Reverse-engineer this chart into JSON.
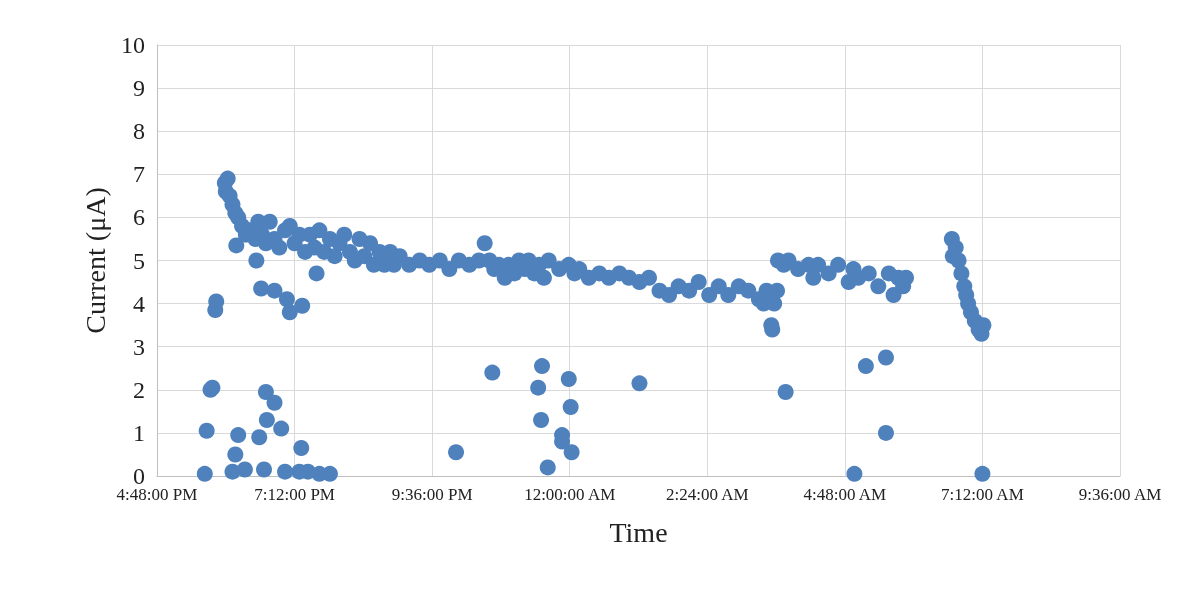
{
  "chart_data": {
    "type": "scatter",
    "xlabel": "Time",
    "ylabel": "Current (μA)",
    "xlim": [
      "--01-01T16:48",
      "--01-02T09:36"
    ],
    "xticks": [
      {
        "value": "--01-01T16:48",
        "label": "4:48:00 PM"
      },
      {
        "value": "--01-01T19:12",
        "label": "7:12:00 PM"
      },
      {
        "value": "--01-01T21:36",
        "label": "9:36:00 PM"
      },
      {
        "value": "--01-02T00:00",
        "label": "12:00:00 AM"
      },
      {
        "value": "--01-02T02:24",
        "label": "2:24:00 AM"
      },
      {
        "value": "--01-02T04:48",
        "label": "4:48:00 AM"
      },
      {
        "value": "--01-02T07:12",
        "label": "7:12:00 AM"
      },
      {
        "value": "--01-02T09:36",
        "label": "9:36:00 AM"
      }
    ],
    "ylim": [
      0,
      10
    ],
    "yticks": [
      0,
      1,
      2,
      3,
      4,
      5,
      6,
      7,
      8,
      9,
      10
    ],
    "grid": true,
    "marker": "circle",
    "series": [
      {
        "color": "#4f81bd",
        "x": [
          "--01-01T17:59",
          "--01-01T18:00",
          "--01-01T18:02",
          "--01-01T18:04",
          "--01-01T18:07",
          "--01-01T18:10",
          "--01-01T18:13",
          "--01-01T18:17",
          "--01-01T18:21",
          "--01-01T18:25",
          "--01-01T18:31",
          "--01-01T18:34",
          "--01-01T18:38",
          "--01-01T18:42",
          "--01-01T18:46",
          "--01-01T18:51",
          "--01-01T18:56",
          "--01-01T19:02",
          "--01-01T19:07",
          "--01-01T19:12",
          "--01-01T19:17",
          "--01-01T19:23",
          "--01-01T19:28",
          "--01-01T19:33",
          "--01-01T19:38",
          "--01-01T19:43",
          "--01-01T19:49",
          "--01-01T19:54",
          "--01-01T19:59",
          "--01-01T20:04",
          "--01-01T20:10",
          "--01-01T20:15",
          "--01-01T20:20",
          "--01-01T20:25",
          "--01-01T20:31",
          "--01-01T20:35",
          "--01-01T20:41",
          "--01-01T20:46",
          "--01-01T20:52",
          "--01-01T20:56",
          "--01-01T21:02",
          "--01-01T21:12",
          "--01-01T21:23",
          "--01-01T21:33",
          "--01-01T21:44",
          "--01-01T21:54",
          "--01-01T22:04",
          "--01-01T22:15",
          "--01-01T22:25",
          "--01-01T22:31",
          "--01-01T22:36",
          "--01-01T22:41",
          "--01-01T22:46",
          "--01-01T22:52",
          "--01-01T22:56",
          "--01-01T23:02",
          "--01-01T23:07",
          "--01-01T23:13",
          "--01-01T23:17",
          "--01-01T23:23",
          "--01-01T23:28",
          "--01-01T23:33",
          "--01-01T23:38",
          "--01-01T23:49",
          "--01-01T23:59",
          "--01-02T00:05",
          "--01-02T00:10",
          "--01-02T00:20",
          "--01-02T00:31",
          "--01-02T00:41",
          "--01-02T00:52",
          "--01-02T01:02",
          "--01-02T01:13",
          "--01-02T01:23",
          "--01-02T01:34",
          "--01-02T01:44",
          "--01-02T01:54",
          "--01-02T02:05",
          "--01-02T02:15",
          "--01-02T02:26",
          "--01-02T02:36",
          "--01-02T02:46",
          "--01-02T02:57",
          "--01-02T03:07",
          "--01-02T03:18",
          "--01-02T03:23",
          "--01-02T03:26",
          "--01-02T03:31",
          "--01-02T03:32",
          "--01-02T03:34",
          "--01-02T03:37",
          "--01-02T03:38",
          "--01-02T03:44",
          "--01-02T03:49",
          "--01-02T03:59",
          "--01-02T04:10",
          "--01-02T04:15",
          "--01-02T04:20",
          "--01-02T04:31",
          "--01-02T04:41",
          "--01-02T04:52",
          "--01-02T04:57",
          "--01-02T05:02",
          "--01-02T05:13",
          "--01-02T05:23",
          "--01-02T05:34",
          "--01-02T05:39",
          "--01-02T05:44",
          "--01-02T05:49",
          "--01-02T05:52",
          "--01-02T06:40",
          "--01-02T06:41",
          "--01-02T06:44",
          "--01-02T06:47",
          "--01-02T06:50",
          "--01-02T06:53",
          "--01-02T06:55",
          "--01-02T06:57",
          "--01-02T07:00",
          "--01-02T07:04",
          "--01-02T07:08",
          "--01-02T07:11",
          "--01-02T07:13",
          "--01-01T17:38",
          "--01-01T17:40",
          "--01-01T17:44",
          "--01-01T17:46",
          "--01-01T17:49",
          "--01-01T17:50",
          "--01-01T18:07",
          "--01-01T18:10",
          "--01-01T18:13",
          "--01-01T18:11",
          "--01-01T18:20",
          "--01-01T18:32",
          "--01-01T18:35",
          "--01-01T18:37",
          "--01-01T18:40",
          "--01-01T18:42",
          "--01-01T18:43",
          "--01-01T18:51",
          "--01-01T18:51",
          "--01-01T18:58",
          "--01-01T19:02",
          "--01-01T19:04",
          "--01-01T19:07",
          "--01-01T19:19",
          "--01-01T19:20",
          "--01-01T19:17",
          "--01-01T19:26",
          "--01-01T19:35",
          "--01-01T19:38",
          "--01-01T19:49",
          "--01-01T22:01",
          "--01-01T22:39",
          "--01-01T23:27",
          "--01-01T23:31",
          "--01-01T23:30",
          "--01-01T23:37",
          "--01-01T23:52",
          "--01-01T23:52",
          "--01-01T23:59",
          "--01-02T00:01",
          "--01-02T00:02",
          "--01-02T01:13",
          "--01-02T03:46",
          "--01-02T04:58",
          "--01-02T05:10",
          "--01-02T05:31",
          "--01-02T05:31",
          "--01-02T07:12"
        ],
        "values": [
          6.8,
          6.6,
          6.9,
          6.5,
          6.3,
          6.1,
          6.0,
          5.8,
          5.6,
          5.7,
          5.5,
          5.9,
          5.6,
          5.4,
          5.9,
          5.5,
          5.3,
          5.7,
          5.8,
          5.4,
          5.6,
          5.2,
          5.6,
          5.3,
          5.7,
          5.2,
          5.5,
          5.1,
          5.4,
          5.6,
          5.2,
          5.0,
          5.5,
          5.1,
          5.4,
          4.9,
          5.2,
          4.9,
          5.2,
          4.9,
          5.1,
          4.9,
          5.0,
          4.9,
          5.0,
          4.8,
          5.0,
          4.9,
          5.0,
          5.4,
          5.0,
          4.8,
          4.9,
          4.6,
          4.9,
          4.7,
          5.0,
          4.8,
          5.0,
          4.7,
          4.9,
          4.6,
          5.0,
          4.8,
          4.9,
          4.7,
          4.8,
          4.6,
          4.7,
          4.6,
          4.7,
          4.6,
          4.5,
          4.6,
          4.3,
          4.2,
          4.4,
          4.3,
          4.5,
          4.2,
          4.4,
          4.2,
          4.4,
          4.3,
          4.1,
          4.0,
          4.3,
          3.5,
          3.4,
          4.0,
          4.3,
          5.0,
          4.9,
          5.0,
          4.8,
          4.9,
          4.6,
          4.9,
          4.7,
          4.9,
          4.5,
          4.8,
          4.6,
          4.7,
          4.4,
          4.7,
          4.2,
          4.6,
          4.4,
          4.6,
          5.5,
          5.1,
          5.3,
          5.0,
          4.7,
          4.4,
          4.2,
          4.0,
          3.8,
          3.6,
          3.4,
          3.3,
          3.5,
          0.05,
          1.05,
          2.0,
          2.05,
          3.85,
          4.05,
          0.1,
          0.5,
          0.95,
          5.35,
          0.15,
          5.0,
          0.9,
          4.35,
          0.15,
          1.95,
          1.3,
          4.3,
          1.7,
          1.1,
          0.1,
          4.1,
          3.8,
          0.65,
          3.95,
          0.1,
          0.1,
          4.7,
          0.05,
          0.05,
          0.55,
          2.4,
          2.05,
          2.55,
          1.3,
          0.2,
          0.95,
          0.8,
          2.25,
          1.6,
          0.55,
          2.15,
          1.95,
          0.05,
          2.55,
          2.75,
          1.0,
          0.05
        ]
      }
    ]
  }
}
